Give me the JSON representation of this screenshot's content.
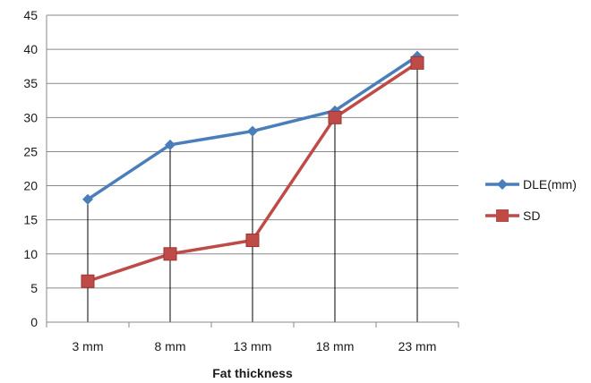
{
  "chart_data": {
    "type": "line",
    "categories": [
      "3 mm",
      "8 mm",
      "13 mm",
      "18 mm",
      "23 mm"
    ],
    "series": [
      {
        "name": "DLE(mm)",
        "values": [
          18,
          26,
          28,
          31,
          39
        ],
        "color": "#4a7ebb",
        "marker": "diamond"
      },
      {
        "name": "SD",
        "values": [
          6,
          10,
          12,
          30,
          38
        ],
        "color": "#be4b48",
        "marker": "square"
      }
    ],
    "title": "",
    "xlabel": "Fat thickness",
    "ylabel": "",
    "ylim": [
      0,
      45
    ],
    "ytick_step": 5,
    "yticks": [
      "0",
      "5",
      "10",
      "15",
      "20",
      "25",
      "30",
      "35",
      "40",
      "45"
    ],
    "grid": "horizontal",
    "drop_lines": true,
    "legend_position": "right"
  }
}
